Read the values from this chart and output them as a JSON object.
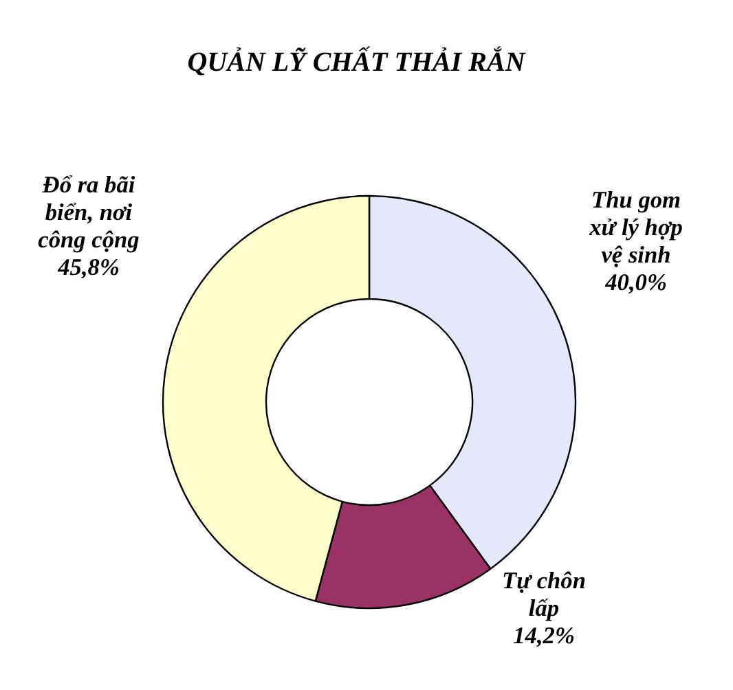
{
  "chart_data": {
    "type": "donut",
    "title": "QUẢN LỸ CHẤT THẢI RẮN",
    "categories": [
      "Thu gom\nxử lý hợp\nvệ sinh",
      "Tự chôn\nlấp",
      "Đổ ra bãi\nbiển, nơi\ncông cộng"
    ],
    "values": [
      40.0,
      14.2,
      45.8
    ],
    "value_labels": [
      "40,0%",
      "14,2%",
      "45,8%"
    ],
    "colors": [
      "#e4e8f8",
      "#993366",
      "#ffffcc"
    ],
    "legend": false
  }
}
